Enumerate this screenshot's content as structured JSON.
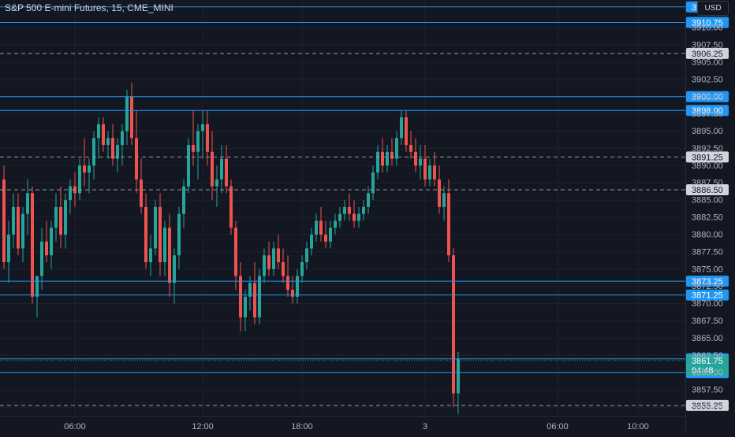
{
  "symbol_title": "S&P 500 E-mini Futures, 15, CME_MINI",
  "currency_label": "USD",
  "countdown": "04:48",
  "colors": {
    "background": "#131722",
    "grid": "#1e222d",
    "up": "#26a69a",
    "down": "#ef5350",
    "hline": "#2196f3",
    "dashed": "#9598a1",
    "axis_text": "#b2b5be"
  },
  "chart_data": {
    "type": "candlestick",
    "title": "S&P 500 E-mini Futures, 15, CME_MINI",
    "ylim": [
      3853.75,
      3914.0
    ],
    "y_ticks": [
      "3855.00",
      "3857.50",
      "3860.00",
      "3862.50",
      "3865.00",
      "3867.50",
      "3870.00",
      "3872.50",
      "3875.00",
      "3877.50",
      "3880.00",
      "3882.50",
      "3885.00",
      "3887.50",
      "3890.00",
      "3892.50",
      "3895.00",
      "3897.50",
      "3900.00",
      "3902.50",
      "3905.00",
      "3907.50",
      "3910.00"
    ],
    "x_ticks": [
      {
        "label": "06:00",
        "index": 15
      },
      {
        "label": "12:00",
        "index": 42
      },
      {
        "label": "18:00",
        "index": 63
      },
      {
        "label": "3",
        "index": 89
      },
      {
        "label": "06:00",
        "index": 117
      },
      {
        "label": "10:00",
        "index": 134
      }
    ],
    "horizontal_lines": [
      {
        "price": 3913.0,
        "label": "3913.00",
        "style": "solid"
      },
      {
        "price": 3910.75,
        "label": "3910.75",
        "style": "solid"
      },
      {
        "price": 3906.25,
        "label": "3906.25",
        "style": "dashed"
      },
      {
        "price": 3900.0,
        "label": "3900.00",
        "style": "solid"
      },
      {
        "price": 3898.0,
        "label": "3898.00",
        "style": "solid"
      },
      {
        "price": 3891.25,
        "label": "3891.25",
        "style": "dashed"
      },
      {
        "price": 3886.5,
        "label": "3886.50",
        "style": "dashed"
      },
      {
        "price": 3873.25,
        "label": "3873.25",
        "style": "solid"
      },
      {
        "price": 3871.25,
        "label": "3871.25",
        "style": "solid"
      },
      {
        "price": 3862.0,
        "label": "3862.00",
        "style": "solid"
      },
      {
        "price": 3860.0,
        "label": "3860.00",
        "style": "solid"
      },
      {
        "price": 3855.25,
        "label": "3855.25",
        "style": "dashed"
      }
    ],
    "current_price": {
      "price": 3861.75,
      "label": "3861.75"
    },
    "candles": [
      [
        3888,
        3890,
        3875,
        3876
      ],
      [
        3876,
        3882,
        3873,
        3880
      ],
      [
        3880,
        3886,
        3878,
        3884
      ],
      [
        3884,
        3886,
        3877,
        3878
      ],
      [
        3878,
        3884,
        3876,
        3883
      ],
      [
        3883,
        3888,
        3880,
        3886
      ],
      [
        3886,
        3887,
        3870,
        3871
      ],
      [
        3871,
        3874,
        3868,
        3874
      ],
      [
        3874,
        3881,
        3872,
        3879
      ],
      [
        3879,
        3882,
        3876,
        3877
      ],
      [
        3877,
        3882,
        3875,
        3881
      ],
      [
        3881,
        3886,
        3879,
        3884
      ],
      [
        3884,
        3887,
        3878,
        3880
      ],
      [
        3880,
        3886,
        3878,
        3885
      ],
      [
        3885,
        3888,
        3883,
        3887
      ],
      [
        3887,
        3889,
        3884,
        3886
      ],
      [
        3886,
        3891,
        3885,
        3890
      ],
      [
        3890,
        3894,
        3887,
        3889
      ],
      [
        3889,
        3891,
        3886,
        3890
      ],
      [
        3890,
        3895,
        3888,
        3894
      ],
      [
        3894,
        3897,
        3891,
        3896
      ],
      [
        3896,
        3897,
        3892,
        3893
      ],
      [
        3893,
        3895,
        3891,
        3894
      ],
      [
        3894,
        3896,
        3890,
        3891
      ],
      [
        3891,
        3894,
        3889,
        3893
      ],
      [
        3893,
        3896,
        3890,
        3895
      ],
      [
        3895,
        3901,
        3893,
        3900
      ],
      [
        3900,
        3902,
        3893,
        3894
      ],
      [
        3894,
        3898,
        3886,
        3888
      ],
      [
        3888,
        3891,
        3883,
        3884
      ],
      [
        3884,
        3886,
        3875,
        3876
      ],
      [
        3876,
        3880,
        3874,
        3878
      ],
      [
        3878,
        3885,
        3877,
        3884
      ],
      [
        3884,
        3886,
        3874,
        3876
      ],
      [
        3876,
        3882,
        3874,
        3881
      ],
      [
        3881,
        3883,
        3871,
        3873
      ],
      [
        3873,
        3878,
        3870,
        3877
      ],
      [
        3877,
        3884,
        3875,
        3883
      ],
      [
        3883,
        3888,
        3881,
        3887
      ],
      [
        3887,
        3894,
        3886,
        3893
      ],
      [
        3893,
        3898,
        3890,
        3892
      ],
      [
        3892,
        3896,
        3888,
        3895
      ],
      [
        3895,
        3898,
        3891,
        3896
      ],
      [
        3896,
        3898,
        3890,
        3892
      ],
      [
        3892,
        3895,
        3885,
        3887
      ],
      [
        3887,
        3890,
        3884,
        3888
      ],
      [
        3888,
        3893,
        3886,
        3891
      ],
      [
        3891,
        3893,
        3886,
        3887
      ],
      [
        3887,
        3888,
        3880,
        3881
      ],
      [
        3881,
        3882,
        3872,
        3874
      ],
      [
        3874,
        3876,
        3866,
        3868
      ],
      [
        3868,
        3872,
        3866,
        3871
      ],
      [
        3871,
        3874,
        3869,
        3873
      ],
      [
        3873,
        3876,
        3867,
        3868
      ],
      [
        3868,
        3875,
        3867,
        3874
      ],
      [
        3874,
        3878,
        3873,
        3877
      ],
      [
        3877,
        3879,
        3874,
        3875
      ],
      [
        3875,
        3879,
        3874,
        3878
      ],
      [
        3878,
        3880,
        3875,
        3876
      ],
      [
        3876,
        3878,
        3873,
        3874
      ],
      [
        3874,
        3877,
        3871,
        3872
      ],
      [
        3872,
        3874,
        3870,
        3871
      ],
      [
        3871,
        3875,
        3870,
        3874
      ],
      [
        3874,
        3877,
        3873,
        3876
      ],
      [
        3876,
        3879,
        3875,
        3878
      ],
      [
        3878,
        3881,
        3877,
        3880
      ],
      [
        3880,
        3883,
        3879,
        3882
      ],
      [
        3882,
        3884,
        3879,
        3880
      ],
      [
        3880,
        3882,
        3878,
        3879
      ],
      [
        3879,
        3882,
        3878,
        3881
      ],
      [
        3881,
        3883,
        3880,
        3882
      ],
      [
        3882,
        3884,
        3881,
        3883
      ],
      [
        3883,
        3885,
        3882,
        3884
      ],
      [
        3884,
        3886,
        3882,
        3883
      ],
      [
        3883,
        3885,
        3881,
        3882
      ],
      [
        3882,
        3884,
        3881,
        3883
      ],
      [
        3883,
        3885,
        3882,
        3884
      ],
      [
        3884,
        3887,
        3883,
        3886
      ],
      [
        3886,
        3890,
        3885,
        3889
      ],
      [
        3889,
        3893,
        3888,
        3892
      ],
      [
        3892,
        3894,
        3889,
        3890
      ],
      [
        3890,
        3893,
        3889,
        3892
      ],
      [
        3892,
        3894,
        3890,
        3891
      ],
      [
        3891,
        3895,
        3890,
        3894
      ],
      [
        3894,
        3898,
        3893,
        3897
      ],
      [
        3897,
        3898,
        3892,
        3893
      ],
      [
        3893,
        3895,
        3891,
        3892
      ],
      [
        3892,
        3894,
        3889,
        3890
      ],
      [
        3890,
        3893,
        3888,
        3891
      ],
      [
        3891,
        3893,
        3887,
        3888
      ],
      [
        3888,
        3891,
        3887,
        3890
      ],
      [
        3890,
        3892,
        3887,
        3888
      ],
      [
        3888,
        3890,
        3883,
        3884
      ],
      [
        3884,
        3887,
        3882,
        3886
      ],
      [
        3886,
        3888,
        3876,
        3877
      ],
      [
        3877,
        3878,
        3855,
        3857
      ],
      [
        3857,
        3863,
        3854,
        3862
      ]
    ]
  }
}
